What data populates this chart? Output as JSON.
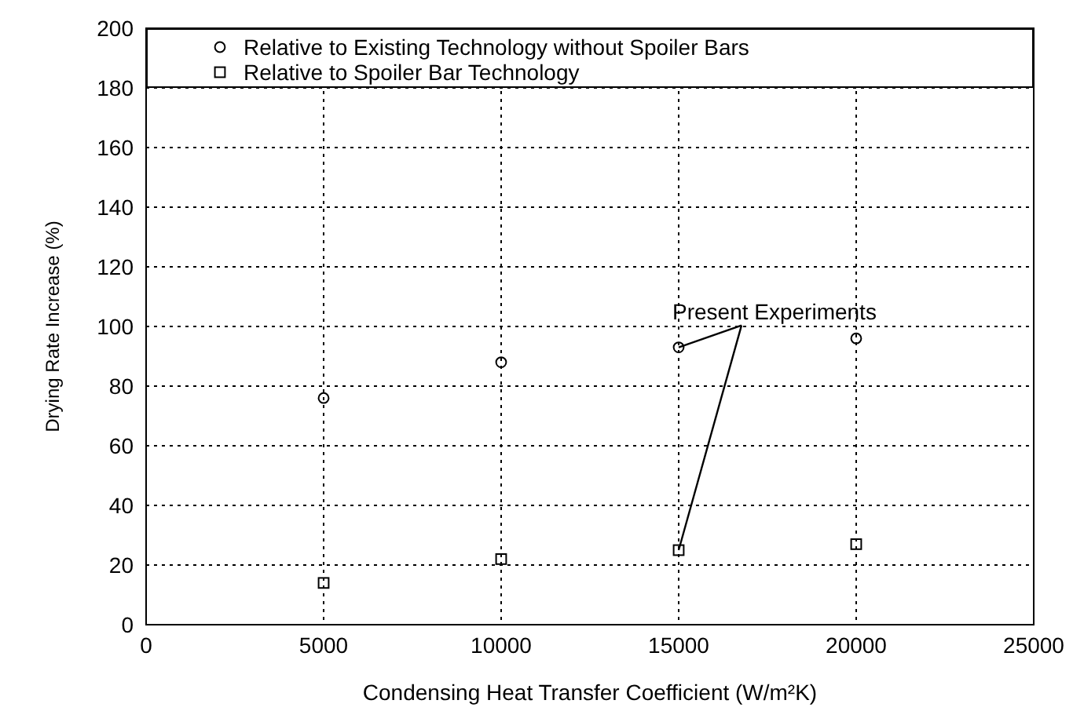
{
  "chart_data": {
    "type": "scatter",
    "xlabel": "Condensing Heat Transfer Coefficient (W/m²K)",
    "ylabel": "Drying Rate Increase (%)",
    "x": [
      5000,
      10000,
      15000,
      20000
    ],
    "series": [
      {
        "name": "Relative to Existing Technology without Spoiler Bars",
        "color": "#000000",
        "marker": "circle",
        "values": [
          76,
          88,
          93,
          96
        ]
      },
      {
        "name": "Relative to Spoiler Bar Technology",
        "color": "#000000",
        "marker": "square",
        "values": [
          14,
          22,
          25,
          27
        ]
      }
    ],
    "xlim": [
      0,
      25000
    ],
    "xticks": [
      0,
      5000,
      10000,
      15000,
      20000,
      25000
    ],
    "ylim": [
      0,
      200
    ],
    "yticks": [
      0,
      20,
      40,
      60,
      80,
      100,
      120,
      140,
      160,
      180,
      200
    ],
    "grid": true,
    "legend": "top",
    "annotations": [
      {
        "text": "Present Experiments",
        "x": 15000,
        "y": 93
      }
    ]
  }
}
